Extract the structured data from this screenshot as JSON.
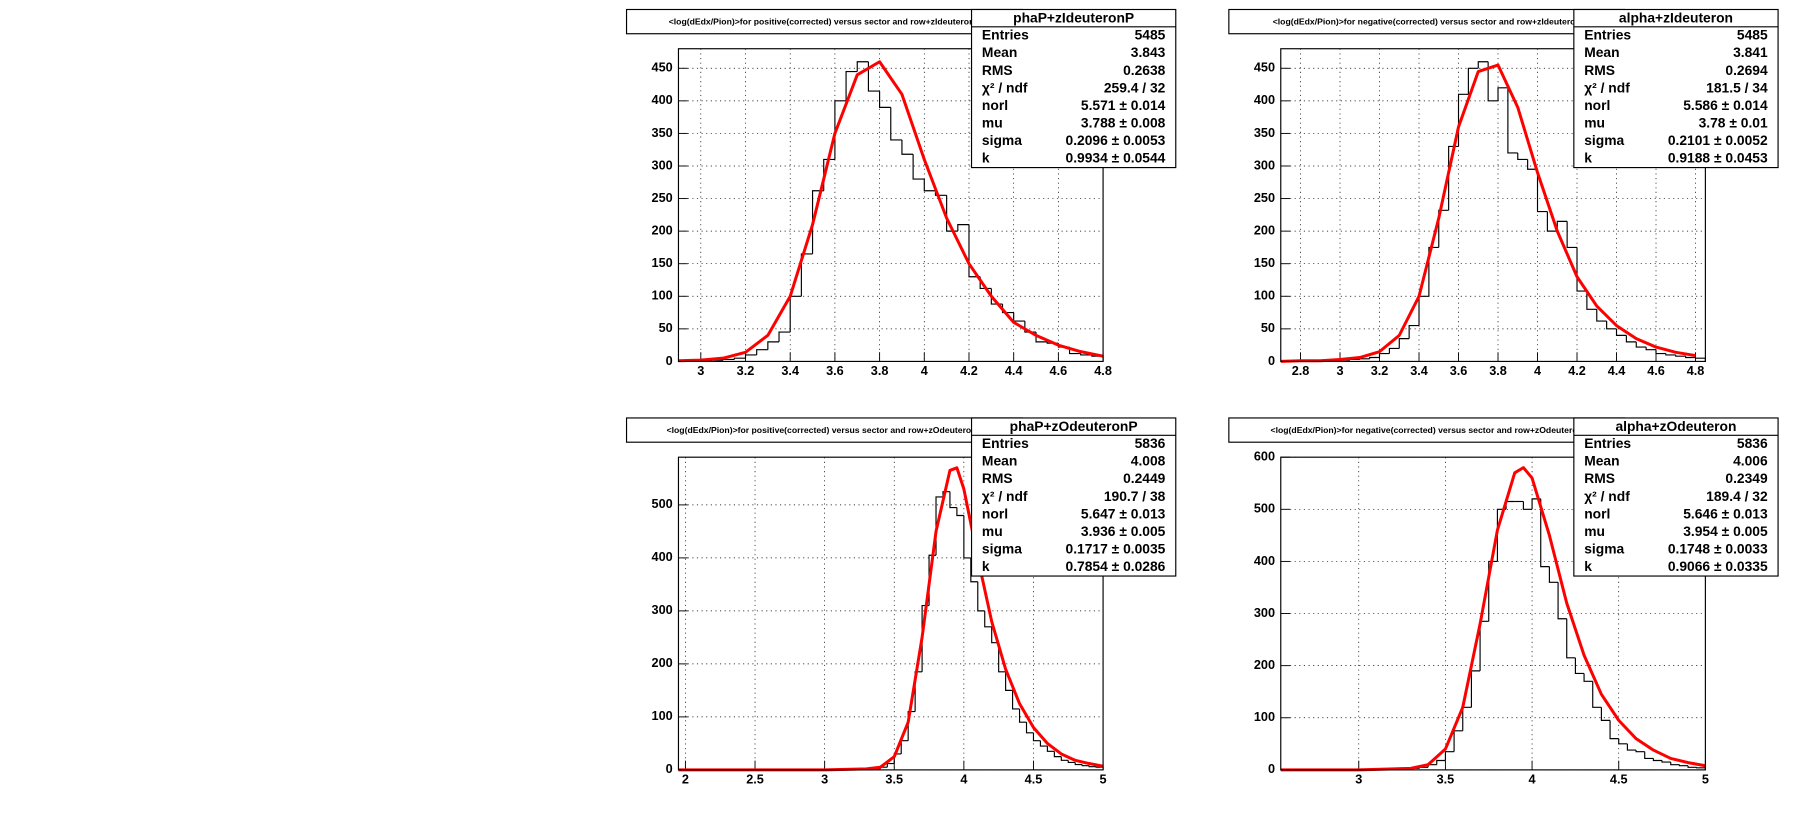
{
  "chart_data": [
    {
      "type": "histogram",
      "title": "<log(dEdx/Pion)>for positive(corrected) versus sector and row+zIdeuteronP",
      "stats_name": "phaP+zIdeuteronP",
      "stats": [
        {
          "label": "Entries",
          "value": "5485"
        },
        {
          "label": "Mean",
          "value": "3.843"
        },
        {
          "label": "RMS",
          "value": "0.2638"
        },
        {
          "label": "χ² / ndf",
          "value": "259.4 / 32"
        },
        {
          "label": "norl",
          "value": "5.571 ± 0.014"
        },
        {
          "label": "mu",
          "value": "3.788 ± 0.008"
        },
        {
          "label": "sigma",
          "value": "0.2096 ± 0.0053"
        },
        {
          "label": "k",
          "value": "0.9934 ± 0.0544"
        }
      ],
      "bins": [
        2.9,
        2.95,
        3.0,
        3.05,
        3.1,
        3.15,
        3.2,
        3.25,
        3.3,
        3.35,
        3.4,
        3.45,
        3.5,
        3.55,
        3.6,
        3.65,
        3.7,
        3.75,
        3.8,
        3.85,
        3.9,
        3.95,
        4.0,
        4.05,
        4.1,
        4.15,
        4.2,
        4.25,
        4.3,
        4.35,
        4.4,
        4.45,
        4.5,
        4.55,
        4.6,
        4.65,
        4.7,
        4.75,
        4.8
      ],
      "counts": [
        0,
        0,
        1,
        2,
        3,
        5,
        10,
        18,
        30,
        45,
        100,
        165,
        262,
        310,
        400,
        445,
        460,
        415,
        390,
        340,
        318,
        280,
        262,
        255,
        200,
        210,
        130,
        112,
        88,
        75,
        62,
        45,
        30,
        28,
        22,
        12,
        10,
        8
      ],
      "fit": {
        "x": [
          2.9,
          3.0,
          3.1,
          3.2,
          3.3,
          3.4,
          3.5,
          3.6,
          3.7,
          3.8,
          3.9,
          4.0,
          4.1,
          4.2,
          4.3,
          4.4,
          4.5,
          4.6,
          4.7,
          4.8
        ],
        "y": [
          1,
          2,
          5,
          14,
          40,
          100,
          210,
          350,
          440,
          460,
          410,
          310,
          220,
          150,
          100,
          60,
          40,
          25,
          15,
          8
        ]
      },
      "xlim": [
        2.9,
        4.8
      ],
      "ylim": [
        0,
        480
      ],
      "xticks": [
        3,
        3.2,
        3.4,
        3.6,
        3.8,
        4,
        4.2,
        4.4,
        4.6,
        4.8
      ],
      "yticks": [
        0,
        50,
        100,
        150,
        200,
        250,
        300,
        350,
        400,
        450
      ],
      "grid": true,
      "color": "#000000",
      "fit_color": "#ff0000"
    },
    {
      "type": "histogram",
      "title": "<log(dEdx/Pion)>for negative(corrected) versus sector and row+zIdeuteron",
      "stats_name": "alpha+zIdeuteron",
      "stats": [
        {
          "label": "Entries",
          "value": "5485"
        },
        {
          "label": "Mean",
          "value": "3.841"
        },
        {
          "label": "RMS",
          "value": "0.2694"
        },
        {
          "label": "χ² / ndf",
          "value": "181.5 / 34"
        },
        {
          "label": "norl",
          "value": "5.586 ± 0.014"
        },
        {
          "label": "mu",
          "value": "3.78 ± 0.01"
        },
        {
          "label": "sigma",
          "value": "0.2101 ± 0.0052"
        },
        {
          "label": "k",
          "value": "0.9188 ± 0.0453"
        }
      ],
      "bins": [
        2.7,
        2.75,
        2.8,
        2.85,
        2.9,
        2.95,
        3.0,
        3.05,
        3.1,
        3.15,
        3.2,
        3.25,
        3.3,
        3.35,
        3.4,
        3.45,
        3.5,
        3.55,
        3.6,
        3.65,
        3.7,
        3.75,
        3.8,
        3.85,
        3.9,
        3.95,
        4.0,
        4.05,
        4.1,
        4.15,
        4.2,
        4.25,
        4.3,
        4.35,
        4.4,
        4.45,
        4.5,
        4.55,
        4.6,
        4.65,
        4.7,
        4.75,
        4.8,
        4.85
      ],
      "counts": [
        0,
        0,
        0,
        0,
        1,
        1,
        2,
        3,
        4,
        6,
        12,
        20,
        35,
        55,
        100,
        175,
        232,
        330,
        410,
        450,
        460,
        400,
        420,
        320,
        310,
        295,
        230,
        200,
        215,
        175,
        108,
        80,
        62,
        50,
        40,
        30,
        22,
        18,
        12,
        10,
        8,
        6,
        5
      ],
      "fit": {
        "x": [
          2.7,
          2.8,
          2.9,
          3.0,
          3.1,
          3.2,
          3.3,
          3.4,
          3.5,
          3.6,
          3.7,
          3.8,
          3.9,
          4.0,
          4.1,
          4.2,
          4.3,
          4.4,
          4.5,
          4.6,
          4.7,
          4.8
        ],
        "y": [
          0,
          1,
          1,
          3,
          6,
          15,
          40,
          100,
          220,
          360,
          445,
          455,
          390,
          290,
          200,
          130,
          85,
          55,
          35,
          22,
          14,
          9
        ]
      },
      "xlim": [
        2.7,
        4.85
      ],
      "ylim": [
        0,
        480
      ],
      "xticks": [
        2.8,
        3,
        3.2,
        3.4,
        3.6,
        3.8,
        4,
        4.2,
        4.4,
        4.6,
        4.8
      ],
      "yticks": [
        0,
        50,
        100,
        150,
        200,
        250,
        300,
        350,
        400,
        450
      ],
      "grid": true,
      "color": "#000000",
      "fit_color": "#ff0000"
    },
    {
      "type": "histogram",
      "title": "<log(dEdx/Pion)>for positive(corrected) versus sector and row+zOdeuteronP",
      "stats_name": "phaP+zOdeuteronP",
      "stats": [
        {
          "label": "Entries",
          "value": "5836"
        },
        {
          "label": "Mean",
          "value": "4.008"
        },
        {
          "label": "RMS",
          "value": "0.2449"
        },
        {
          "label": "χ² / ndf",
          "value": "190.7 / 38"
        },
        {
          "label": "norl",
          "value": "5.647 ± 0.013"
        },
        {
          "label": "mu",
          "value": "3.936 ± 0.005"
        },
        {
          "label": "sigma",
          "value": "0.1717 ± 0.0035"
        },
        {
          "label": "k",
          "value": "0.7854 ± 0.0286"
        }
      ],
      "bins": [
        3.0,
        3.05,
        3.1,
        3.15,
        3.2,
        3.25,
        3.3,
        3.35,
        3.4,
        3.45,
        3.5,
        3.55,
        3.6,
        3.65,
        3.7,
        3.75,
        3.8,
        3.85,
        3.9,
        3.95,
        4.0,
        4.05,
        4.1,
        4.15,
        4.2,
        4.25,
        4.3,
        4.35,
        4.4,
        4.45,
        4.5,
        4.55,
        4.6,
        4.65,
        4.7,
        4.75,
        4.8,
        4.85,
        4.9,
        4.95,
        5.0
      ],
      "counts": [
        0,
        0,
        0,
        0,
        0,
        0,
        0,
        2,
        5,
        12,
        30,
        55,
        110,
        185,
        310,
        405,
        515,
        525,
        495,
        480,
        400,
        355,
        300,
        270,
        240,
        185,
        150,
        115,
        90,
        70,
        55,
        45,
        35,
        25,
        18,
        14,
        10,
        8,
        6,
        5
      ],
      "fit": {
        "x": [
          1.95,
          3.0,
          3.3,
          3.4,
          3.5,
          3.6,
          3.7,
          3.8,
          3.9,
          3.95,
          4.0,
          4.1,
          4.2,
          4.3,
          4.4,
          4.5,
          4.6,
          4.7,
          4.8,
          4.9,
          5.0
        ],
        "y": [
          0,
          0,
          2,
          5,
          25,
          90,
          250,
          450,
          565,
          570,
          530,
          400,
          280,
          190,
          125,
          80,
          50,
          30,
          18,
          12,
          7
        ]
      },
      "xlim": [
        1.95,
        5
      ],
      "ylim": [
        0,
        590
      ],
      "xticks": [
        2,
        2.5,
        3,
        3.5,
        4,
        4.5,
        5
      ],
      "yticks": [
        0,
        100,
        200,
        300,
        400,
        500
      ],
      "grid": true,
      "color": "#000000",
      "fit_color": "#ff0000"
    },
    {
      "type": "histogram",
      "title": "<log(dEdx/Pion)>for negative(corrected) versus sector and row+zOdeuteron",
      "stats_name": "alpha+zOdeuteron",
      "stats": [
        {
          "label": "Entries",
          "value": "5836"
        },
        {
          "label": "Mean",
          "value": "4.006"
        },
        {
          "label": "RMS",
          "value": "0.2349"
        },
        {
          "label": "χ² / ndf",
          "value": "189.4 / 32"
        },
        {
          "label": "norl",
          "value": "5.646 ± 0.013"
        },
        {
          "label": "mu",
          "value": "3.954 ± 0.005"
        },
        {
          "label": "sigma",
          "value": "0.1748 ± 0.0033"
        },
        {
          "label": "k",
          "value": "0.9066 ± 0.0335"
        }
      ],
      "bins": [
        3.0,
        3.05,
        3.1,
        3.15,
        3.2,
        3.25,
        3.3,
        3.35,
        3.4,
        3.45,
        3.5,
        3.55,
        3.6,
        3.65,
        3.7,
        3.75,
        3.8,
        3.85,
        3.9,
        3.95,
        4.0,
        4.05,
        4.1,
        4.15,
        4.2,
        4.25,
        4.3,
        4.35,
        4.4,
        4.45,
        4.5,
        4.55,
        4.6,
        4.65,
        4.7,
        4.75,
        4.8,
        4.85,
        4.9,
        4.95,
        5.0
      ],
      "counts": [
        0,
        0,
        0,
        1,
        1,
        2,
        3,
        5,
        10,
        18,
        35,
        75,
        120,
        190,
        285,
        400,
        500,
        515,
        515,
        500,
        520,
        390,
        360,
        290,
        215,
        185,
        170,
        120,
        95,
        60,
        50,
        38,
        35,
        22,
        18,
        15,
        10,
        8,
        5,
        4
      ],
      "fit": {
        "x": [
          2.55,
          3.0,
          3.3,
          3.4,
          3.5,
          3.6,
          3.7,
          3.8,
          3.9,
          3.95,
          4.0,
          4.1,
          4.2,
          4.3,
          4.4,
          4.5,
          4.6,
          4.7,
          4.8,
          4.9,
          5.0
        ],
        "y": [
          0,
          0,
          3,
          10,
          40,
          120,
          280,
          460,
          570,
          580,
          560,
          450,
          320,
          220,
          145,
          95,
          60,
          38,
          22,
          14,
          8
        ]
      },
      "xlim": [
        2.55,
        5
      ],
      "ylim": [
        0,
        600
      ],
      "xticks": [
        3,
        3.5,
        4,
        4.5,
        5
      ],
      "yticks": [
        0,
        100,
        200,
        300,
        400,
        500,
        600
      ],
      "grid": true,
      "color": "#000000",
      "fit_color": "#ff0000"
    }
  ]
}
